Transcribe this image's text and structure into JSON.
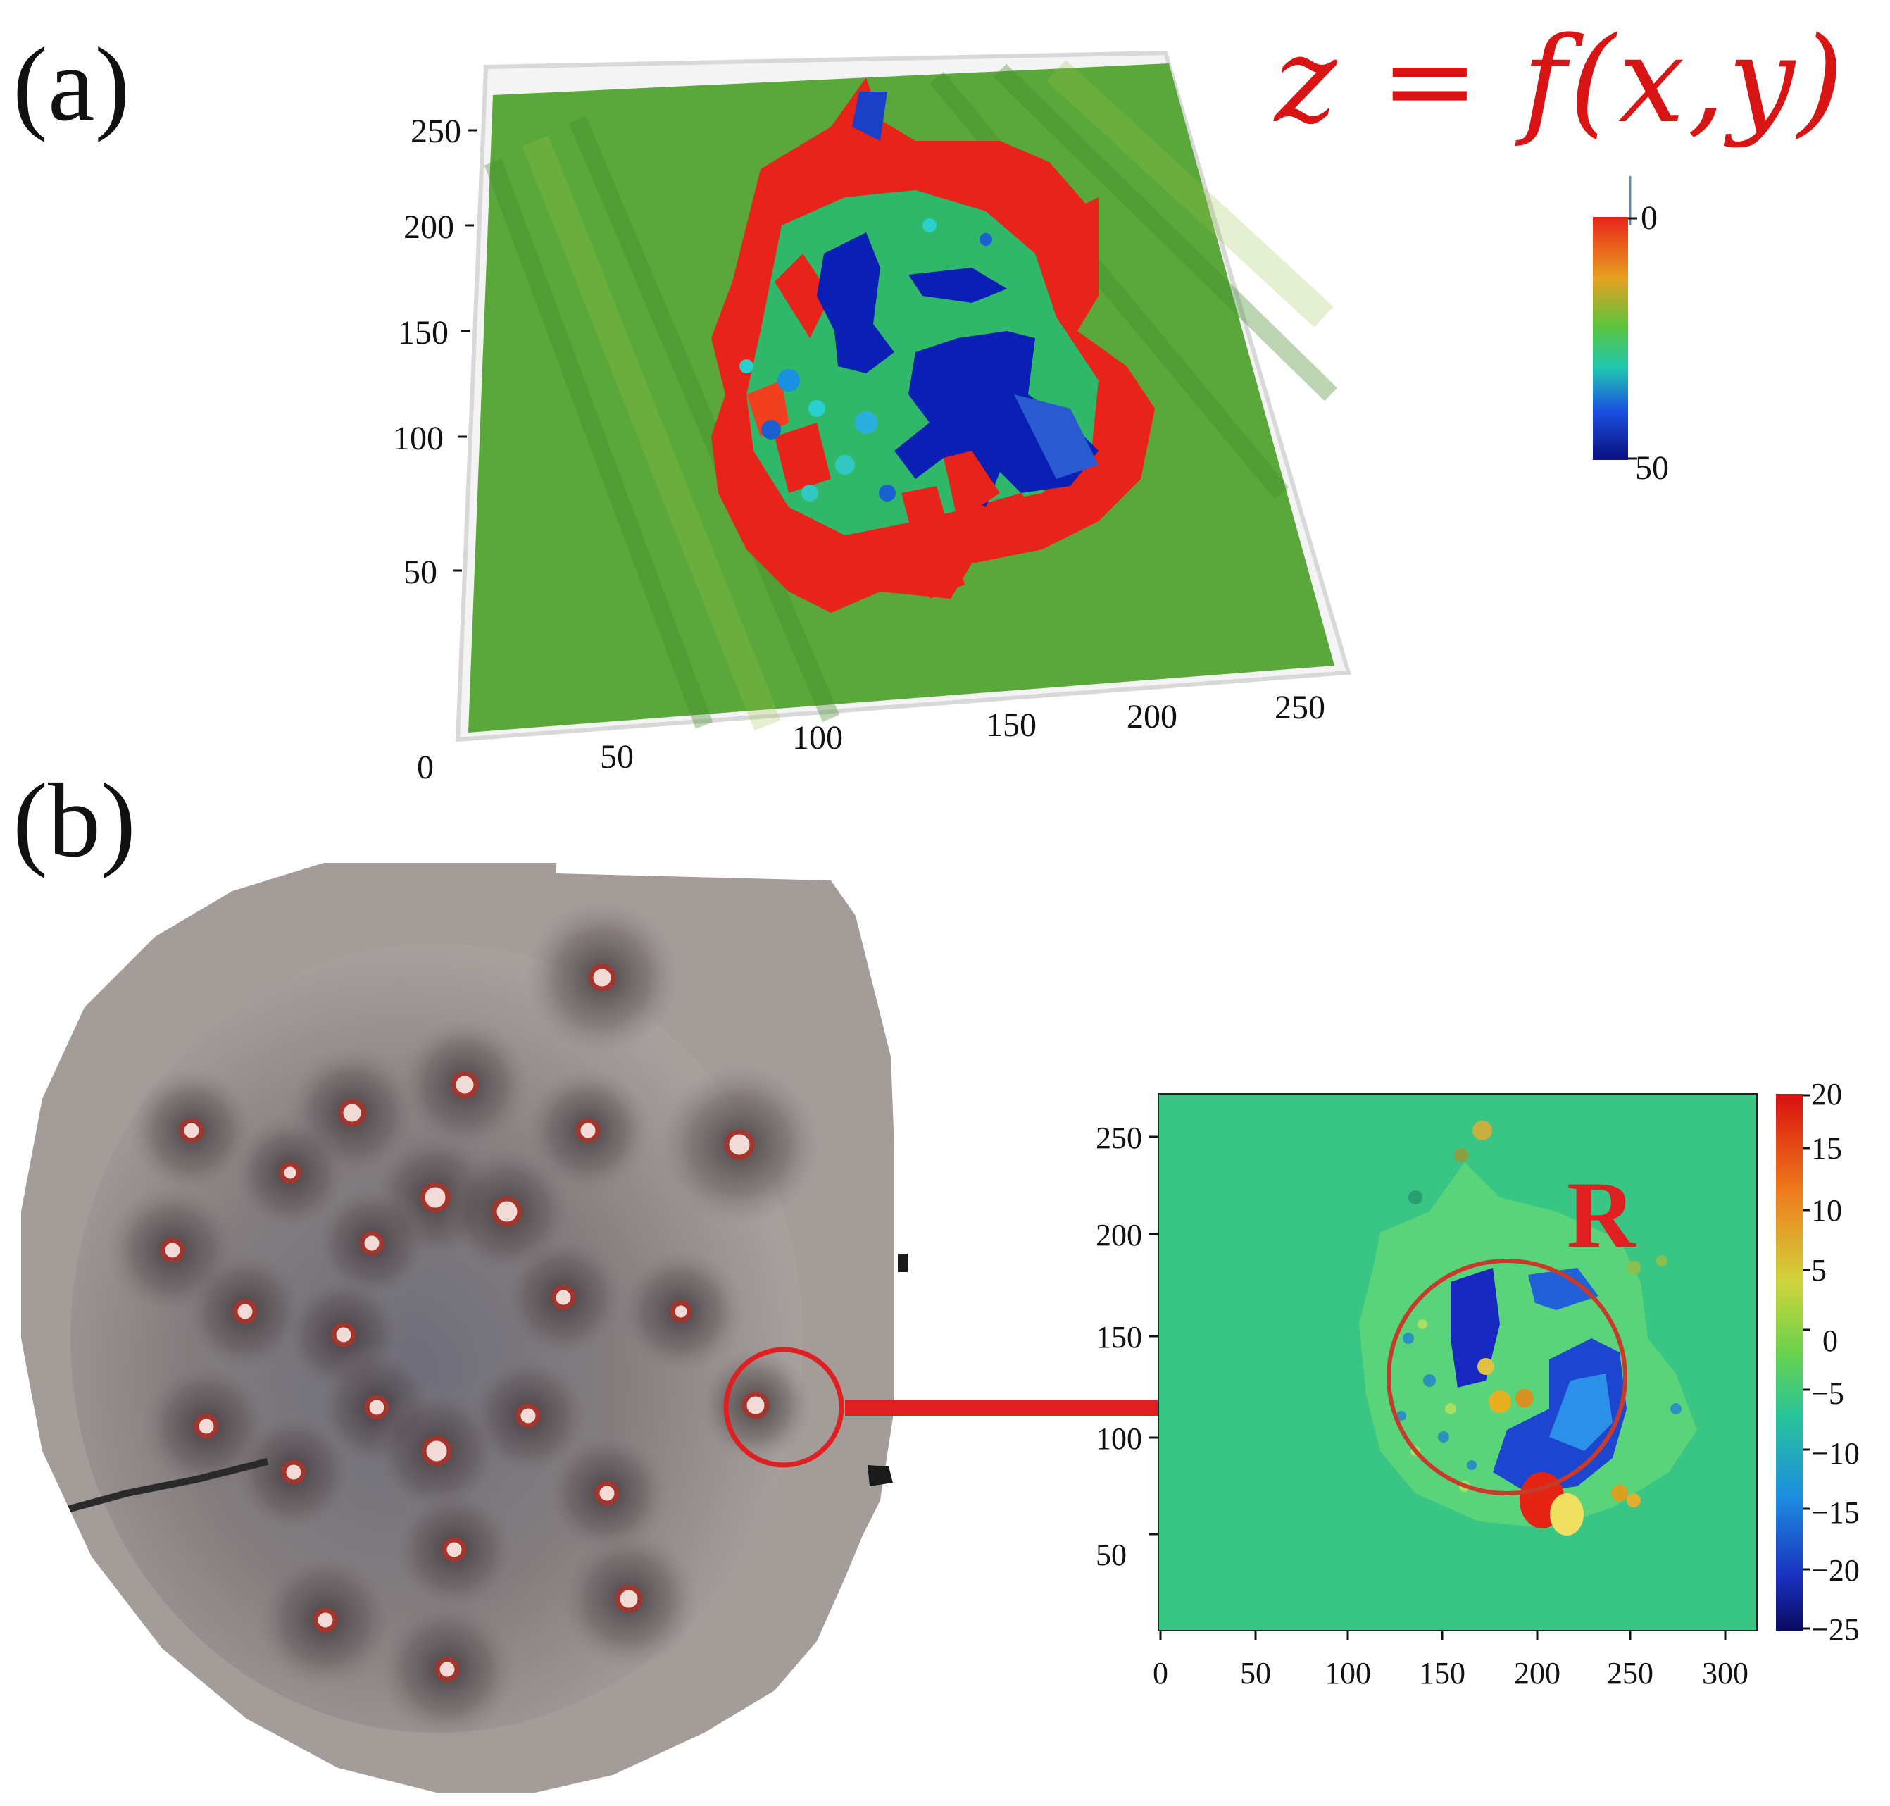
{
  "panel_a": {
    "label": "(a)",
    "formula": "z = f(x,y)",
    "y_ticks": [
      "250",
      "200",
      "150",
      "100",
      "50"
    ],
    "x_ticks": [
      "0",
      "50",
      "100",
      "150",
      "200",
      "250"
    ],
    "colorbar": {
      "top_label": "0",
      "bottom_label": "50"
    }
  },
  "panel_b": {
    "label": "(b)",
    "map": {
      "annotation": "R",
      "y_ticks": [
        "250",
        "200",
        "150",
        "100",
        "50"
      ],
      "x_ticks": [
        "0",
        "50",
        "100",
        "150",
        "200",
        "250",
        "300"
      ],
      "colorbar_ticks": [
        "20",
        "15",
        "10",
        "5",
        "0",
        "−5",
        "−10",
        "−15",
        "−20",
        "−25"
      ]
    }
  },
  "colors": {
    "surface_green": "#5aa83a",
    "pit_red": "#e8231a",
    "pit_blue": "#0a1fb4",
    "map_teal": "#33c28a",
    "highlight_red": "#e02020",
    "sample_grey": "#a49c99"
  }
}
